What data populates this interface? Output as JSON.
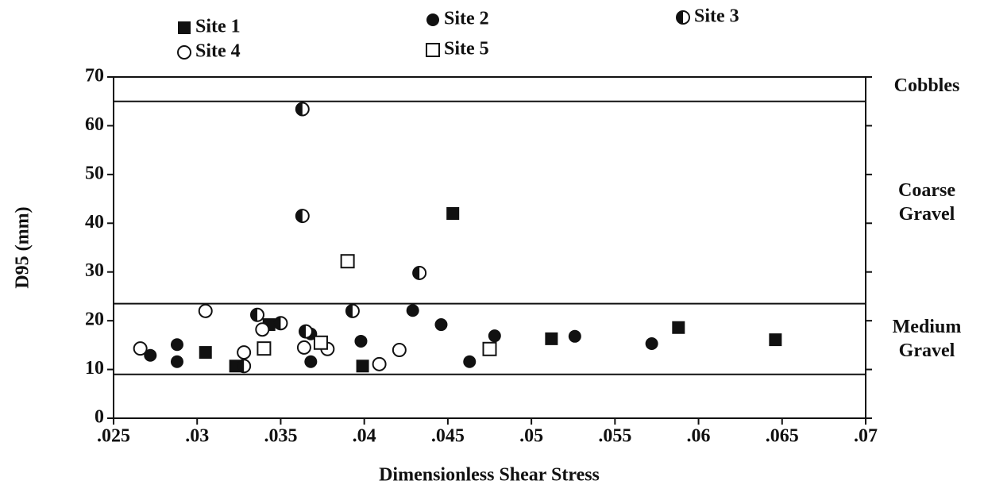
{
  "chart_data": {
    "type": "scatter",
    "xlabel": "Dimensionless Shear Stress",
    "ylabel": "D95 (mm)",
    "xlim": [
      0.025,
      0.07
    ],
    "ylim": [
      0,
      70
    ],
    "xticks": [
      {
        "value": 0.025,
        "label": ".025"
      },
      {
        "value": 0.03,
        "label": ".03"
      },
      {
        "value": 0.035,
        "label": ".035"
      },
      {
        "value": 0.04,
        "label": ".04"
      },
      {
        "value": 0.045,
        "label": ".045"
      },
      {
        "value": 0.05,
        "label": ".05"
      },
      {
        "value": 0.055,
        "label": ".055"
      },
      {
        "value": 0.06,
        "label": ".06"
      },
      {
        "value": 0.065,
        "label": ".065"
      },
      {
        "value": 0.07,
        "label": ".07"
      }
    ],
    "yticks": [
      0,
      10,
      20,
      30,
      40,
      50,
      60,
      70
    ],
    "hlines": [
      9,
      23.5,
      65
    ],
    "zones": [
      {
        "label": [
          "Cobbles"
        ],
        "y": 68
      },
      {
        "label": [
          "Coarse",
          "Gravel"
        ],
        "y": 44
      },
      {
        "label": [
          "Medium",
          "Gravel"
        ],
        "y": 16
      }
    ],
    "series": [
      {
        "name": "Site 1",
        "marker": "square-filled",
        "color": "#111111",
        "x": [
          0.0453,
          0.0343,
          0.0323,
          0.0305,
          0.0399,
          0.0512,
          0.0588,
          0.0646
        ],
        "y": [
          42.0,
          19.2,
          10.7,
          13.5,
          10.7,
          16.3,
          18.6,
          16.1
        ]
      },
      {
        "name": "Site 2",
        "marker": "circle-filled",
        "color": "#111111",
        "x": [
          0.0272,
          0.0288,
          0.0288,
          0.0368,
          0.0368,
          0.0398,
          0.0429,
          0.0446,
          0.0463,
          0.0478,
          0.0526,
          0.0572
        ],
        "y": [
          12.9,
          15.1,
          11.6,
          11.6,
          17.3,
          15.8,
          22.1,
          19.2,
          11.6,
          16.9,
          16.8,
          15.3
        ]
      },
      {
        "name": "Site 3",
        "marker": "circle-half",
        "color": "#111111",
        "x": [
          0.0363,
          0.0363,
          0.0433,
          0.035,
          0.0393,
          0.0336,
          0.0365,
          0.0328
        ],
        "y": [
          63.4,
          41.5,
          29.8,
          19.5,
          22.0,
          21.2,
          17.8,
          10.7
        ]
      },
      {
        "name": "Site 4",
        "marker": "circle-open",
        "color": "#111111",
        "x": [
          0.0266,
          0.0305,
          0.0328,
          0.0339,
          0.0364,
          0.0378,
          0.0421,
          0.0409
        ],
        "y": [
          14.3,
          22.0,
          13.5,
          18.2,
          14.5,
          14.2,
          14.0,
          11.1
        ]
      },
      {
        "name": "Site 5",
        "marker": "square-open",
        "color": "#111111",
        "x": [
          0.039,
          0.034,
          0.0374,
          0.0475
        ],
        "y": [
          32.2,
          14.3,
          15.5,
          14.2
        ]
      }
    ]
  }
}
